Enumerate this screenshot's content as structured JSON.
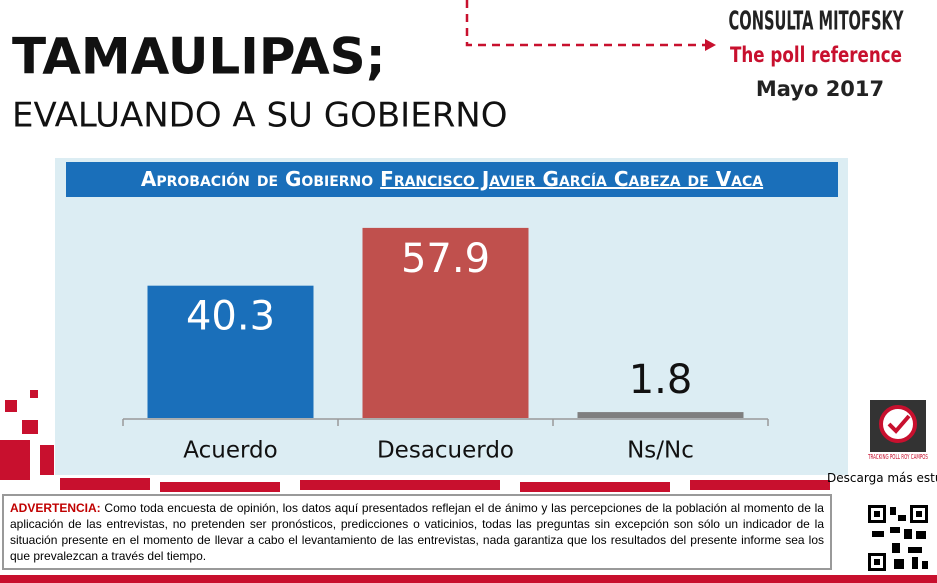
{
  "header": {
    "title": "TAMAULIPAS;",
    "subtitle": "EVALUANDO A SU GOBIERNO"
  },
  "logo": {
    "brand": "CONSULTA MITOFSKY",
    "tagline": "The poll reference",
    "date": "Mayo 2017"
  },
  "chart_data": {
    "type": "bar",
    "title": [
      "Aprobación de Gobierno",
      "Francisco Javier García Cabeza de Vaca"
    ],
    "categories": [
      "Acuerdo",
      "Desacuerdo",
      "Ns/Nc"
    ],
    "values": [
      40.3,
      57.9,
      1.8
    ],
    "colors": [
      "#1a6fba",
      "#c0504d",
      "#7f7f7f"
    ],
    "ylim": [
      0,
      60
    ]
  },
  "side": {
    "badge": "TRACKING POLL ROY CAMPOS",
    "download": "Descarga más estudios"
  },
  "warning": {
    "label": "ADVERTENCIA:",
    "text": "Como toda encuesta de opinión, los datos aquí presentados reflejan el de ánimo y las percepciones de la población al momento de la aplicación de las entrevistas, no pretenden ser pronósticos, predicciones o vaticinios, todas las preguntas sin excepción son sólo un indicador de la situación presente en el momento de llevar a cabo el levantamiento de las entrevistas, nada garantiza que los resultados del presente informe sea los que prevalezcan a través del tiempo."
  }
}
